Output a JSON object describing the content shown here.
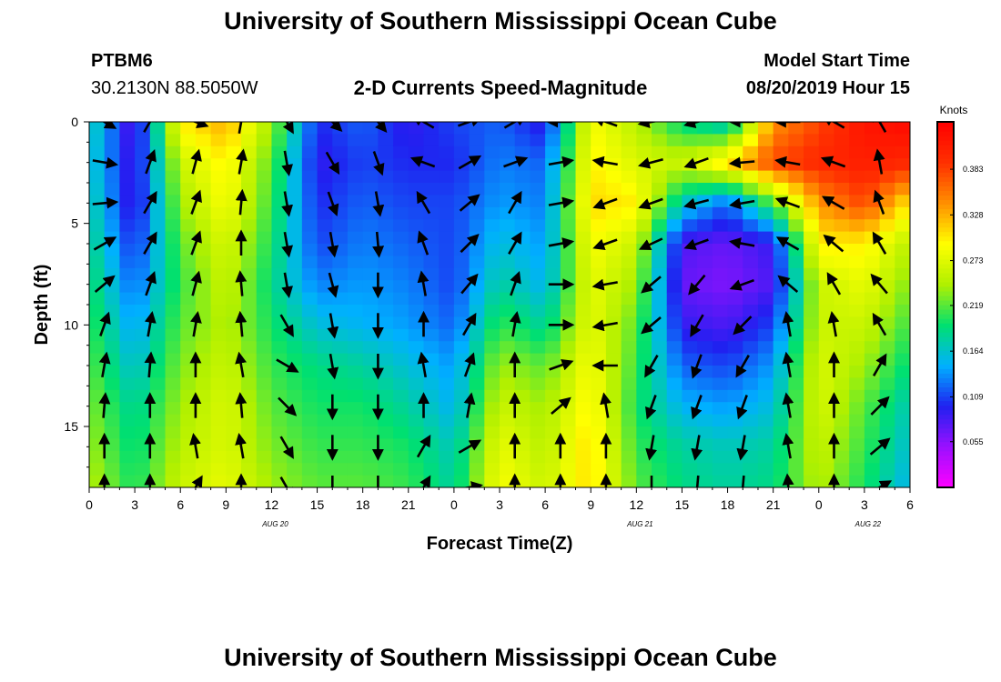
{
  "header": {
    "title": "University of Southern Mississippi Ocean Cube",
    "station": "PTBM6",
    "coordinates": "30.2130N 88.5050W",
    "subtitle": "2-D Currents Speed-Magnitude",
    "model_start_label": "Model Start Time",
    "model_start_value": "08/20/2019 Hour 15"
  },
  "footer": {
    "title": "University of Southern Mississippi Ocean Cube"
  },
  "chart_data": {
    "type": "heatmap",
    "title": "2-D Currents Speed-Magnitude",
    "xlabel": "Forecast Time(Z)",
    "ylabel": "Depth (ft)",
    "x_tick_labels": [
      "0",
      "3",
      "6",
      "9",
      "12",
      "15",
      "18",
      "21",
      "0",
      "3",
      "6",
      "9",
      "12",
      "15",
      "18",
      "21",
      "0",
      "3",
      "6"
    ],
    "x_tick_hours": [
      0,
      3,
      6,
      9,
      12,
      15,
      18,
      21,
      24,
      27,
      30,
      33,
      36,
      39,
      42,
      45,
      48,
      51,
      54
    ],
    "x_range_hours": [
      0,
      54
    ],
    "date_labels": [
      {
        "text": "AUG 20",
        "hour": 12
      },
      {
        "text": "AUG 21",
        "hour": 36
      },
      {
        "text": "AUG 22",
        "hour": 51
      }
    ],
    "y_tick_labels": [
      "0",
      "5",
      "10",
      "15"
    ],
    "y_tick_values": [
      0,
      5,
      10,
      15
    ],
    "y_range_ft": [
      0,
      18
    ],
    "colorbar": {
      "unit": "Knots",
      "tick_labels": [
        "0.383",
        "0.328",
        "0.273",
        "0.219",
        "0.164",
        "0.109",
        "0.055"
      ],
      "tick_values": [
        0.383,
        0.328,
        0.273,
        0.219,
        0.164,
        0.109,
        0.055
      ],
      "range": [
        0.0,
        0.44
      ],
      "colors": [
        "#ff00ff",
        "#9b10ff",
        "#2020f0",
        "#00b0ff",
        "#00e070",
        "#b0f000",
        "#ffff00",
        "#ff9000",
        "#ff3000",
        "#ff0000"
      ]
    },
    "depth_levels_ft": [
      0,
      2,
      4,
      6,
      8,
      10,
      12,
      14,
      16,
      18
    ],
    "speed_grid_note": "speed values in knots; rows = depth levels, columns = forecast hours 0..54 step 3",
    "speed_grid": [
      [
        0.18,
        0.07,
        0.3,
        0.33,
        0.24,
        0.1,
        0.12,
        0.09,
        0.11,
        0.12,
        0.09,
        0.29,
        0.25,
        0.19,
        0.16,
        0.34,
        0.38,
        0.42,
        0.43
      ],
      [
        0.17,
        0.08,
        0.26,
        0.3,
        0.22,
        0.09,
        0.11,
        0.1,
        0.1,
        0.13,
        0.12,
        0.3,
        0.27,
        0.26,
        0.31,
        0.38,
        0.4,
        0.41,
        0.4
      ],
      [
        0.18,
        0.08,
        0.24,
        0.29,
        0.21,
        0.1,
        0.12,
        0.11,
        0.11,
        0.14,
        0.13,
        0.31,
        0.3,
        0.17,
        0.12,
        0.22,
        0.34,
        0.38,
        0.3
      ],
      [
        0.19,
        0.1,
        0.22,
        0.27,
        0.2,
        0.11,
        0.13,
        0.12,
        0.11,
        0.16,
        0.14,
        0.29,
        0.26,
        0.08,
        0.07,
        0.09,
        0.3,
        0.3,
        0.25
      ],
      [
        0.2,
        0.12,
        0.21,
        0.26,
        0.19,
        0.13,
        0.14,
        0.13,
        0.11,
        0.18,
        0.15,
        0.28,
        0.24,
        0.07,
        0.06,
        0.08,
        0.26,
        0.28,
        0.23
      ],
      [
        0.21,
        0.14,
        0.22,
        0.25,
        0.2,
        0.16,
        0.15,
        0.14,
        0.12,
        0.21,
        0.18,
        0.28,
        0.22,
        0.09,
        0.08,
        0.11,
        0.26,
        0.26,
        0.21
      ],
      [
        0.22,
        0.16,
        0.23,
        0.26,
        0.21,
        0.19,
        0.18,
        0.16,
        0.14,
        0.24,
        0.22,
        0.29,
        0.21,
        0.12,
        0.11,
        0.14,
        0.27,
        0.24,
        0.19
      ],
      [
        0.23,
        0.18,
        0.24,
        0.27,
        0.22,
        0.2,
        0.2,
        0.18,
        0.15,
        0.26,
        0.24,
        0.3,
        0.2,
        0.15,
        0.14,
        0.16,
        0.27,
        0.22,
        0.17
      ],
      [
        0.24,
        0.19,
        0.25,
        0.27,
        0.23,
        0.21,
        0.21,
        0.2,
        0.17,
        0.28,
        0.25,
        0.31,
        0.21,
        0.18,
        0.17,
        0.18,
        0.26,
        0.21,
        0.16
      ],
      [
        0.25,
        0.2,
        0.26,
        0.28,
        0.24,
        0.22,
        0.22,
        0.21,
        0.18,
        0.29,
        0.26,
        0.31,
        0.22,
        0.19,
        0.18,
        0.19,
        0.25,
        0.2,
        0.15
      ]
    ],
    "current_direction_note": "vector directions in degrees (screen angle, 0 = pointing right, 90 = pointing down)",
    "current_direction_grid": [
      [
        30,
        -60,
        20,
        -80,
        60,
        45,
        50,
        -150,
        -20,
        -30,
        180,
        -160,
        170,
        165,
        180,
        -180,
        -150,
        -120,
        -60
      ],
      [
        10,
        -70,
        -75,
        -80,
        80,
        60,
        70,
        -160,
        -30,
        -20,
        -10,
        -170,
        165,
        160,
        175,
        -170,
        -160,
        -100,
        -70
      ],
      [
        -5,
        -60,
        -70,
        -85,
        80,
        70,
        80,
        -120,
        -40,
        -60,
        -10,
        160,
        160,
        165,
        170,
        -160,
        -150,
        -110,
        -60
      ],
      [
        -30,
        -60,
        -70,
        -90,
        80,
        80,
        85,
        -110,
        -45,
        -60,
        -10,
        160,
        155,
        160,
        -170,
        -150,
        -140,
        -120,
        -50
      ],
      [
        -40,
        -70,
        -75,
        -95,
        80,
        75,
        90,
        -100,
        -50,
        -70,
        0,
        170,
        140,
        130,
        160,
        -140,
        -120,
        -130,
        -20
      ],
      [
        -70,
        -80,
        -80,
        -95,
        60,
        80,
        90,
        -90,
        -60,
        -80,
        0,
        170,
        140,
        120,
        135,
        -100,
        -100,
        -120,
        -30
      ],
      [
        -80,
        -85,
        -90,
        -100,
        30,
        80,
        90,
        -100,
        -70,
        -90,
        -20,
        180,
        120,
        110,
        120,
        -100,
        -90,
        -60,
        -10
      ],
      [
        -85,
        -90,
        -90,
        -95,
        45,
        90,
        90,
        -90,
        -80,
        -90,
        -40,
        -100,
        110,
        110,
        110,
        -100,
        -90,
        -45,
        -20
      ],
      [
        -90,
        -90,
        -100,
        -100,
        60,
        90,
        90,
        -60,
        -30,
        -90,
        -90,
        -90,
        100,
        100,
        100,
        -100,
        -90,
        -40,
        -40
      ],
      [
        -90,
        -90,
        -60,
        -90,
        60,
        90,
        90,
        -60,
        -10,
        -90,
        -90,
        -90,
        90,
        95,
        95,
        -95,
        -90,
        -30,
        -90
      ]
    ]
  }
}
